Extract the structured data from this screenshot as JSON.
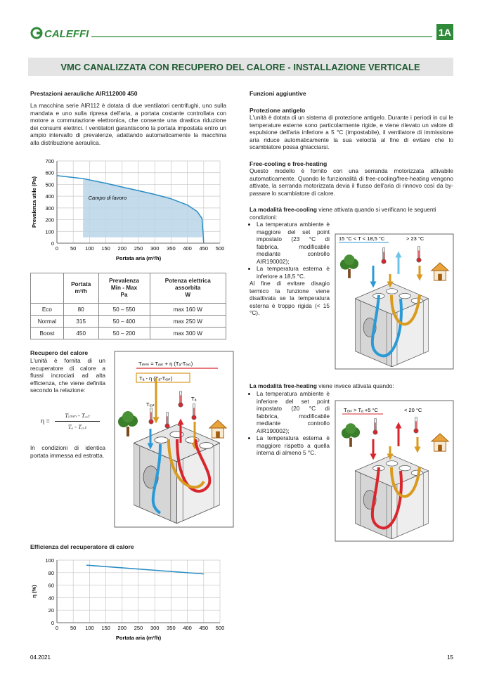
{
  "header": {
    "brand": "CALEFFI",
    "section": "1A"
  },
  "title": "VMC CANALIZZATA CON RECUPERO DEL CALORE - INSTALLAZIONE VERTICALE",
  "left": {
    "perf_heading": "Prestazioni aerauliche AIR112000 450",
    "perf_text": "La macchina serie AIR112 è dotata di due ventilatori centrifughi, uno sulla mandata e uno sulla ripresa dell'aria, a portata costante controllata con motore a commutazione elettronica, che consente una drastica riduzione dei consumi elettrici. I ventilatori garantiscono la portata impostata entro un ampio intervallo di prevalenze, adattando automaticamente la macchina alla distribuzione aeraulica.",
    "recovery_heading": "Recupero del calore",
    "recovery_text": "L'unità è fornita di un recuperatore di calore a flussi incrociati ad alta efficienza, che viene definita secondo la relazione:",
    "formula": {
      "lhs": "η =",
      "num": "Tᵢₘₘ - Tₑₓₜ",
      "den": "Tₐ - Tₑₓₜ"
    },
    "recovery_note": "In condizioni di identica portata immessa ed estratta.",
    "efficiency_heading": "Efficienza del recuperatore di calore"
  },
  "table": {
    "header": [
      "Portata\nm³/h",
      "Prevalenza\nMin - Max\nPa",
      "Potenza elettrica\nassorbita\nW"
    ],
    "rows": [
      [
        "Eco",
        "80",
        "50 – 550",
        "max 160 W"
      ],
      [
        "Normal",
        "315",
        "50 – 400",
        "max 250 W"
      ],
      [
        "Boost",
        "450",
        "50 – 200",
        "max 300 W"
      ]
    ]
  },
  "diagram_recovery": {
    "formula1": "Tᵢₘₘ = Tₑₓₜ + η (Tₐ-Tₑₓₜ)",
    "formula2": "Tₐ - η (Tₐ-Tₑₓₜ)",
    "t_ext": "Tₑₓₜ",
    "t_a": "Tₐ"
  },
  "right": {
    "heading": "Funzioni aggiuntive",
    "antifreeze_heading": "Protezione antigelo",
    "antifreeze_text": "L'unità è dotata di un sistema di protezione antigelo. Durante i periodi in cui le temperature esterne sono particolarmente rigide, e viene rilevato un valore di espulsione dell'aria inferiore a 5 °C (impostabile), il ventilatore di immissione aria riduce automaticamente la sua velocità al fine di evitare che lo scambiatore possa ghiacciarsi.",
    "free_heading": "Free-cooling e free-heating",
    "free_text": "Questo modello è fornito con una serranda motorizzata attivabile automaticamente. Quando le funzionalità di free-cooling/free-heating vengono attivate, la serranda motorizzata devia il flusso dell'aria di rinnovo così da by-passare lo scambiatore di calore.",
    "cooling_lead": "La modalità free-cooling",
    "cooling_text": " viene attivata quando si verificano le seguenti condizioni:",
    "cooling_bullets": [
      "La temperatura ambiente è maggiore del set point impostato (23 °C di fabbrica, modificabile mediante controllo AIR190002);",
      "La temperatura esterna è inferiore a 18,5 °C."
    ],
    "cooling_note": "Al fine di evitare disagio termico la funzione viene disattivata se la temperatura esterna è troppo rigida (< 15 °C).",
    "cooling_labels": [
      "15 °C < T < 18,5 °C",
      "> 23 °C"
    ],
    "heating_lead": "La modalità free-heating",
    "heating_text": " viene invece attivata quando:",
    "heating_bullets": [
      "La temperatura ambiente è inferiore del set point impostato (20 °C di fabbrica, modificabile mediante controllo AIR190002);",
      "La temperatura esterna è maggiore rispetto a quella interna di almeno 5 °C."
    ],
    "heating_labels": [
      "Tₑₓₜ > Tₐ +5 °C",
      "< 20 °C"
    ]
  },
  "chart_data": [
    {
      "type": "line",
      "x_label": "Portata aria (m³/h)",
      "y_label": "Prevalenza utile (Pa)",
      "annotation": "Campo di lavoro",
      "x": [
        0,
        80,
        150,
        200,
        250,
        300,
        350,
        400,
        430,
        445,
        450
      ],
      "series": [
        {
          "color": "#2a8cc4",
          "values": [
            575,
            550,
            510,
            478,
            447,
            415,
            378,
            325,
            270,
            210,
            0
          ]
        }
      ],
      "area": {
        "x_start": 80,
        "bottom": 50,
        "color": "#b9d5e8"
      },
      "xlim": [
        0,
        500
      ],
      "ylim": [
        0,
        700
      ],
      "xticks": [
        0,
        50,
        100,
        150,
        200,
        250,
        300,
        350,
        400,
        450,
        500
      ],
      "yticks": [
        0,
        100,
        200,
        300,
        400,
        500,
        600,
        700
      ],
      "grid": true
    },
    {
      "type": "line",
      "x_label": "Portata aria (m³/h)",
      "y_label": "η (%)",
      "x": [
        90,
        450
      ],
      "series": [
        {
          "color": "#2a8cc4",
          "values": [
            92,
            78
          ]
        }
      ],
      "xlim": [
        0,
        500
      ],
      "ylim": [
        0,
        100
      ],
      "xticks": [
        0,
        50,
        100,
        150,
        200,
        250,
        300,
        350,
        400,
        450,
        500
      ],
      "yticks": [
        0,
        20,
        40,
        60,
        80,
        100
      ],
      "grid": true
    }
  ],
  "footer": {
    "date": "04.2021",
    "page": "15"
  }
}
